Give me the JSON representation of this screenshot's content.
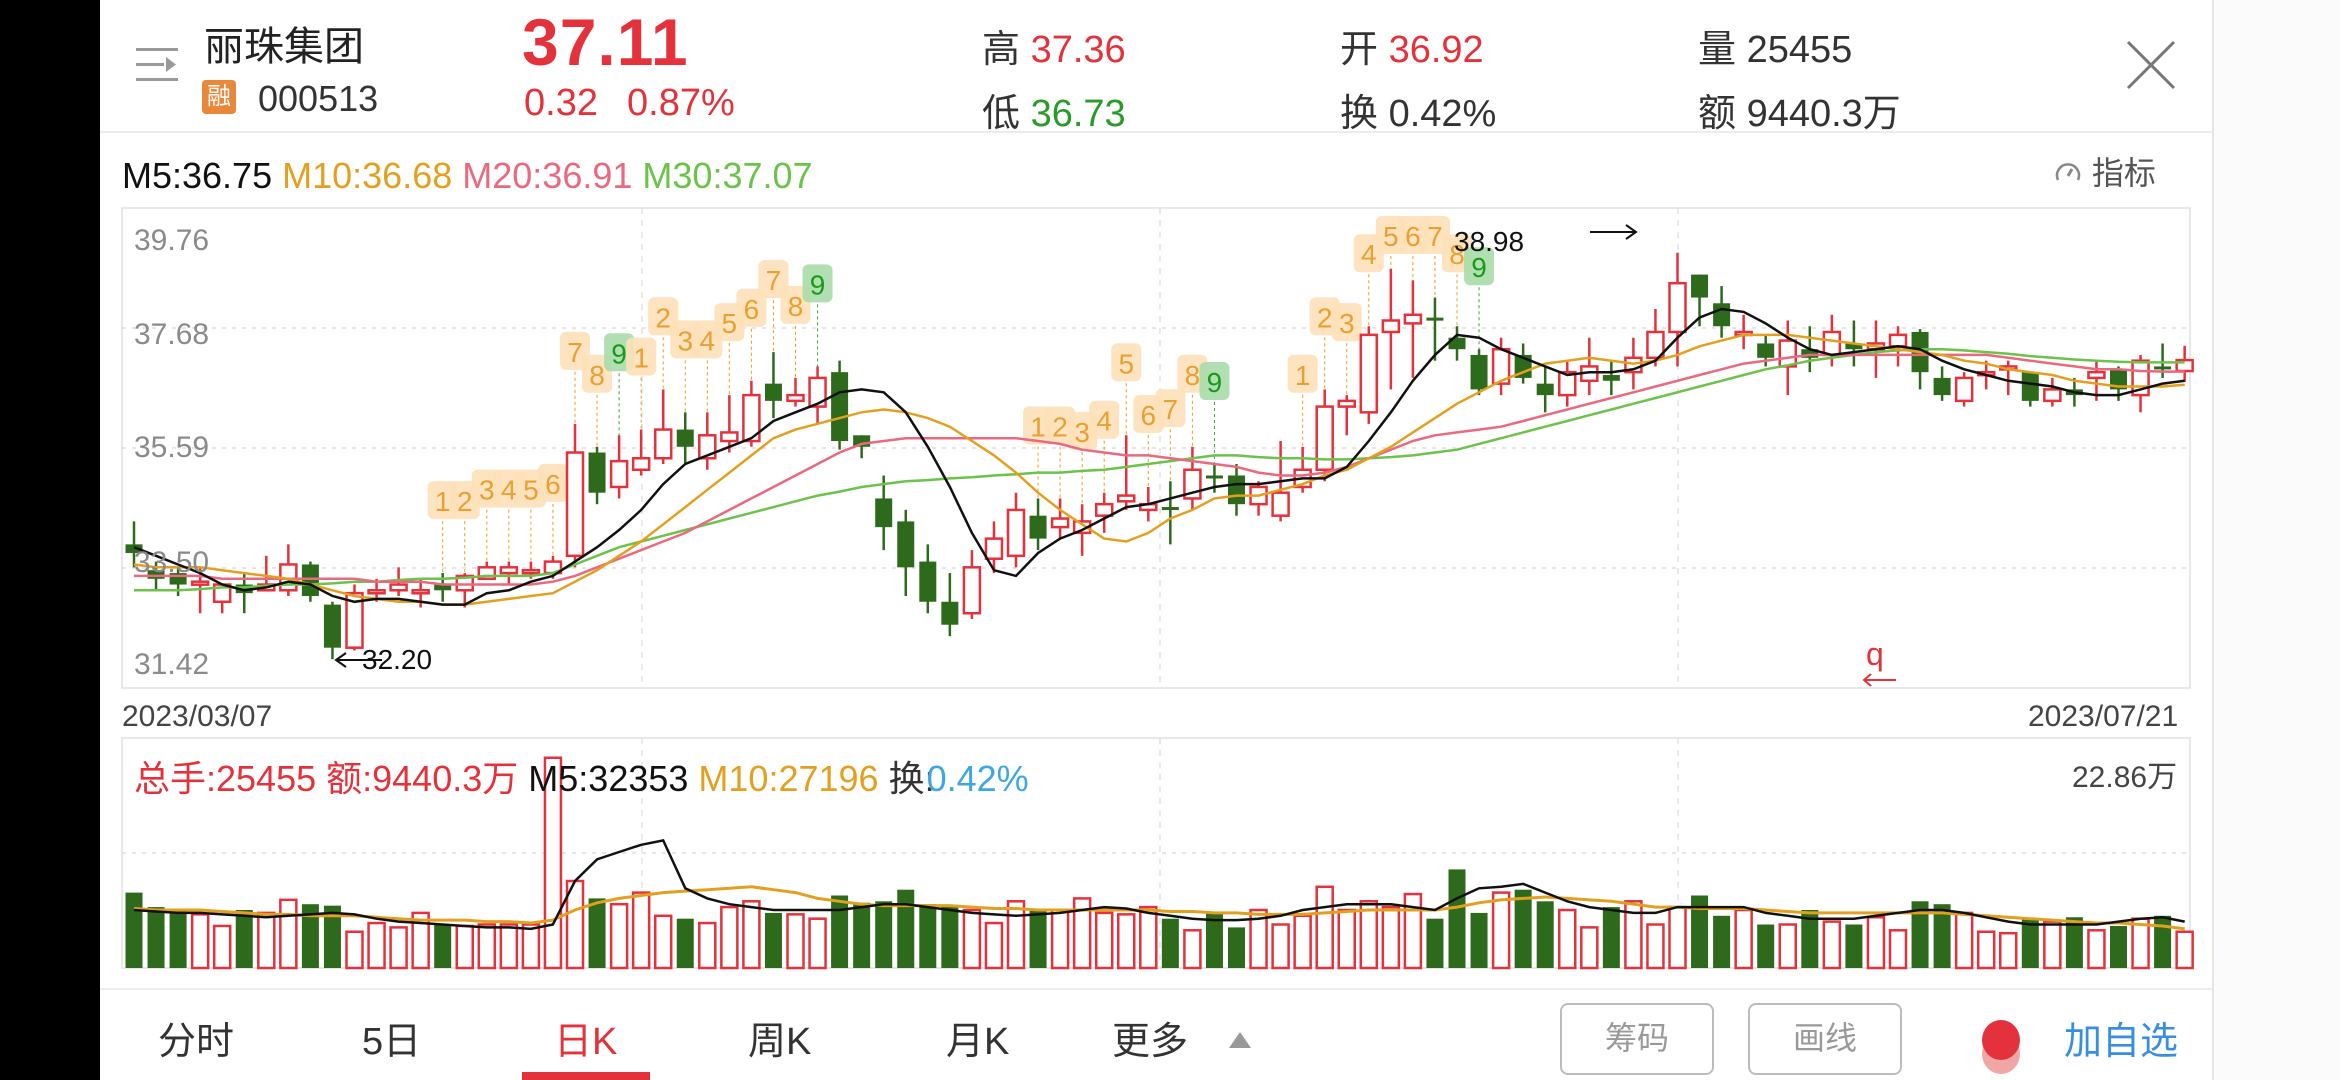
{
  "header": {
    "stock_name": "丽珠集团",
    "badge": "融",
    "stock_code": "000513",
    "price": "37.11",
    "change": "0.32",
    "change_pct": "0.87%",
    "high_label": "高",
    "high_value": "37.36",
    "low_label": "低",
    "low_value": "36.73",
    "open_label": "开",
    "open_value": "36.92",
    "turnover_label": "换",
    "turnover_value": "0.42%",
    "volume_label": "量",
    "volume_value": "25455",
    "amount_label": "额",
    "amount_value": "9440.3万"
  },
  "indicator_button": "指标",
  "ma_legend": {
    "m5": "M5:36.75",
    "m10": "M10:36.68",
    "m20": "M20:36.91",
    "m30": "M30:37.07"
  },
  "colors": {
    "up": "#e3323b",
    "down": "#2d6a1c",
    "m5": "#111111",
    "m10": "#e3a020",
    "m20": "#e86a80",
    "m30": "#6cc24a",
    "turnover_blue": "#3fa7e0",
    "add_watch_blue": "#3a8ee0"
  },
  "price_axis": [
    "39.76",
    "37.68",
    "35.59",
    "33.50",
    "31.42"
  ],
  "annotations": {
    "high_mark": "38.98",
    "low_mark": "32.20",
    "signal_mark": "q"
  },
  "date_range": {
    "start": "2023/03/07",
    "end": "2023/07/21"
  },
  "volume_panel": {
    "total_hands": "总手:25455",
    "amount": "额:9440.3万",
    "m5": "M5:32353",
    "m10": "M10:27196",
    "turnover_label": "换:",
    "turnover_value": "0.42%",
    "max_label": "22.86万"
  },
  "tabs": [
    {
      "label": "分时",
      "active": false
    },
    {
      "label": "5日",
      "active": false
    },
    {
      "label": "日K",
      "active": true
    },
    {
      "label": "周K",
      "active": false
    },
    {
      "label": "月K",
      "active": false
    },
    {
      "label": "更多",
      "active": false
    }
  ],
  "buttons": {
    "chips": "筹码",
    "draw_line": "画线",
    "add_watchlist": "加自选"
  },
  "chart_data": {
    "type": "candlestick",
    "title": "丽珠集团 000513 日K",
    "x_range": [
      "2023/03/07",
      "2023/07/21"
    ],
    "ylim": [
      31.42,
      39.76
    ],
    "y_ticks": [
      39.76,
      37.68,
      35.59,
      33.5,
      31.42
    ],
    "ma_latest": {
      "M5": 36.75,
      "M10": 36.68,
      "M20": 36.91,
      "M30": 37.07
    },
    "candles": [
      [
        33.9,
        33.75,
        34.3,
        33.5
      ],
      [
        33.45,
        33.3,
        33.6,
        33.1
      ],
      [
        33.4,
        33.2,
        33.5,
        33.0
      ],
      [
        33.2,
        33.25,
        33.5,
        32.7
      ],
      [
        32.9,
        33.2,
        33.2,
        32.7
      ],
      [
        33.2,
        33.05,
        33.4,
        32.7
      ],
      [
        33.1,
        33.2,
        33.7,
        33.1
      ],
      [
        33.1,
        33.55,
        33.9,
        33.0
      ],
      [
        33.55,
        33.0,
        33.6,
        32.9
      ],
      [
        32.85,
        32.1,
        32.9,
        31.9
      ],
      [
        32.1,
        33.05,
        33.2,
        32.05
      ],
      [
        33.05,
        33.1,
        33.3,
        32.9
      ],
      [
        33.1,
        33.2,
        33.5,
        33.0
      ],
      [
        33.05,
        33.1,
        33.3,
        32.8
      ],
      [
        33.2,
        33.1,
        33.4,
        32.9
      ],
      [
        33.1,
        33.35,
        33.4,
        32.8
      ],
      [
        33.3,
        33.5,
        33.6,
        33.3
      ],
      [
        33.4,
        33.5,
        33.6,
        33.2
      ],
      [
        33.4,
        33.45,
        33.6,
        33.3
      ],
      [
        33.4,
        33.6,
        33.7,
        33.3
      ],
      [
        33.7,
        35.5,
        36.0,
        33.5
      ],
      [
        35.5,
        34.8,
        35.6,
        34.6
      ],
      [
        34.9,
        35.35,
        35.8,
        34.7
      ],
      [
        35.2,
        35.4,
        35.9,
        35.1
      ],
      [
        35.4,
        35.9,
        36.6,
        35.3
      ],
      [
        35.9,
        35.6,
        36.2,
        35.3
      ],
      [
        35.4,
        35.8,
        36.2,
        35.2
      ],
      [
        35.7,
        35.85,
        36.5,
        35.5
      ],
      [
        35.7,
        36.5,
        36.75,
        35.6
      ],
      [
        36.7,
        36.4,
        37.25,
        36.1
      ],
      [
        36.4,
        36.5,
        36.8,
        36.3
      ],
      [
        36.3,
        36.8,
        37.0,
        36.0
      ],
      [
        36.9,
        35.7,
        37.1,
        35.55
      ],
      [
        35.8,
        35.6,
        35.8,
        35.4
      ],
      [
        34.7,
        34.2,
        35.1,
        33.8
      ],
      [
        34.3,
        33.5,
        34.5,
        33.0
      ],
      [
        33.6,
        32.9,
        33.9,
        32.7
      ],
      [
        32.9,
        32.5,
        33.4,
        32.3
      ],
      [
        32.7,
        33.5,
        33.8,
        32.6
      ],
      [
        33.65,
        34.0,
        34.3,
        33.4
      ],
      [
        33.7,
        34.5,
        34.8,
        33.5
      ],
      [
        34.4,
        34.0,
        34.7,
        33.8
      ],
      [
        34.2,
        34.35,
        34.7,
        34.0
      ],
      [
        34.1,
        34.3,
        34.6,
        33.7
      ],
      [
        34.4,
        34.6,
        34.8,
        34.1
      ],
      [
        34.65,
        34.75,
        35.8,
        34.5
      ],
      [
        34.5,
        34.6,
        34.9,
        34.3
      ],
      [
        34.55,
        34.5,
        35.0,
        33.9
      ],
      [
        34.7,
        35.2,
        35.6,
        34.5
      ],
      [
        35.1,
        35.05,
        35.3,
        34.8
      ],
      [
        35.1,
        34.6,
        35.3,
        34.4
      ],
      [
        34.6,
        34.9,
        35.0,
        34.4
      ],
      [
        34.4,
        34.8,
        35.7,
        34.3
      ],
      [
        34.9,
        35.2,
        35.6,
        34.8
      ],
      [
        35.2,
        36.3,
        36.6,
        35.0
      ],
      [
        36.3,
        36.4,
        36.5,
        35.8
      ],
      [
        36.2,
        37.55,
        37.7,
        36.0
      ],
      [
        37.6,
        37.8,
        38.7,
        36.6
      ],
      [
        37.75,
        37.9,
        38.5,
        36.8
      ],
      [
        37.85,
        37.8,
        38.2,
        37.1
      ],
      [
        37.5,
        37.3,
        37.7,
        37.1
      ],
      [
        37.2,
        36.6,
        37.3,
        36.5
      ],
      [
        36.7,
        37.3,
        37.5,
        36.5
      ],
      [
        37.2,
        36.8,
        37.4,
        36.7
      ],
      [
        36.7,
        36.5,
        37.0,
        36.2
      ],
      [
        36.5,
        36.9,
        37.1,
        36.3
      ],
      [
        36.75,
        37.0,
        37.5,
        36.5
      ],
      [
        36.85,
        36.75,
        37.1,
        36.5
      ],
      [
        36.9,
        37.15,
        37.5,
        36.6
      ],
      [
        37.15,
        37.6,
        38.0,
        37.0
      ],
      [
        37.6,
        38.45,
        38.98,
        37.0
      ],
      [
        38.6,
        38.2,
        38.6,
        37.7
      ],
      [
        38.1,
        37.7,
        38.4,
        37.5
      ],
      [
        37.6,
        37.6,
        37.9,
        37.3
      ],
      [
        37.4,
        37.15,
        37.55,
        37.0
      ],
      [
        37.0,
        37.45,
        37.8,
        36.5
      ],
      [
        37.3,
        37.15,
        37.7,
        36.9
      ],
      [
        37.2,
        37.6,
        37.9,
        37.0
      ],
      [
        37.4,
        37.3,
        37.8,
        37.0
      ],
      [
        37.3,
        37.4,
        37.8,
        36.8
      ],
      [
        37.35,
        37.55,
        37.7,
        37.0
      ],
      [
        37.6,
        36.9,
        37.65,
        36.6
      ],
      [
        36.8,
        36.5,
        37.0,
        36.4
      ],
      [
        36.4,
        36.8,
        36.9,
        36.3
      ],
      [
        36.9,
        36.9,
        37.1,
        36.6
      ],
      [
        36.95,
        37.0,
        37.1,
        36.5
      ],
      [
        36.9,
        36.4,
        36.9,
        36.3
      ],
      [
        36.4,
        36.6,
        36.8,
        36.3
      ],
      [
        36.6,
        36.5,
        36.8,
        36.3
      ],
      [
        36.8,
        36.9,
        37.1,
        36.4
      ],
      [
        36.95,
        36.6,
        37.0,
        36.4
      ],
      [
        36.5,
        37.1,
        37.2,
        36.2
      ],
      [
        37.0,
        36.95,
        37.4,
        36.8
      ],
      [
        36.92,
        37.11,
        37.36,
        36.73
      ]
    ],
    "ma_lines": {
      "M5": [
        33.85,
        33.7,
        33.55,
        33.4,
        33.2,
        33.1,
        33.15,
        33.25,
        33.2,
        33.0,
        32.9,
        32.95,
        32.95,
        32.9,
        32.85,
        32.85,
        33.05,
        33.1,
        33.25,
        33.35,
        33.6,
        33.85,
        34.15,
        34.5,
        34.95,
        35.3,
        35.45,
        35.6,
        35.75,
        36.05,
        36.2,
        36.35,
        36.55,
        36.6,
        36.55,
        36.2,
        35.6,
        34.9,
        34.1,
        33.45,
        33.35,
        33.75,
        34.0,
        34.15,
        34.35,
        34.55,
        34.6,
        34.7,
        34.8,
        34.9,
        34.95,
        34.95,
        35.0,
        35.05,
        35.05,
        35.25,
        35.7,
        36.2,
        36.75,
        37.2,
        37.55,
        37.5,
        37.3,
        37.15,
        37.0,
        36.85,
        36.9,
        36.9,
        36.95,
        37.1,
        37.5,
        37.85,
        38.0,
        37.95,
        37.75,
        37.5,
        37.3,
        37.2,
        37.25,
        37.3,
        37.35,
        37.3,
        37.1,
        36.95,
        36.85,
        36.75,
        36.7,
        36.65,
        36.55,
        36.5,
        36.5,
        36.6,
        36.7,
        36.75
      ],
      "M10": [
        33.55,
        33.5,
        33.5,
        33.5,
        33.45,
        33.4,
        33.35,
        33.3,
        33.2,
        33.1,
        33.0,
        32.95,
        32.9,
        32.9,
        32.85,
        32.85,
        32.9,
        32.95,
        33.0,
        33.05,
        33.25,
        33.45,
        33.7,
        33.95,
        34.25,
        34.55,
        34.85,
        35.15,
        35.45,
        35.75,
        35.9,
        36.0,
        36.1,
        36.2,
        36.25,
        36.2,
        36.1,
        35.95,
        35.7,
        35.45,
        35.15,
        34.8,
        34.5,
        34.25,
        34.0,
        33.95,
        34.1,
        34.35,
        34.5,
        34.7,
        34.75,
        34.75,
        34.85,
        34.95,
        35.1,
        35.2,
        35.4,
        35.6,
        35.85,
        36.1,
        36.35,
        36.55,
        36.75,
        36.9,
        37.05,
        37.1,
        37.15,
        37.1,
        37.05,
        37.1,
        37.2,
        37.35,
        37.45,
        37.55,
        37.55,
        37.55,
        37.5,
        37.45,
        37.4,
        37.35,
        37.3,
        37.25,
        37.2,
        37.1,
        37.05,
        36.95,
        36.9,
        36.85,
        36.75,
        36.7,
        36.65,
        36.65,
        36.65,
        36.68
      ],
      "M20": [
        33.35,
        33.35,
        33.35,
        33.35,
        33.3,
        33.3,
        33.3,
        33.3,
        33.3,
        33.3,
        33.3,
        33.25,
        33.25,
        33.25,
        33.2,
        33.2,
        33.2,
        33.2,
        33.2,
        33.25,
        33.35,
        33.5,
        33.65,
        33.8,
        33.95,
        34.1,
        34.3,
        34.5,
        34.7,
        34.9,
        35.1,
        35.3,
        35.5,
        35.65,
        35.7,
        35.75,
        35.75,
        35.75,
        35.75,
        35.75,
        35.75,
        35.7,
        35.65,
        35.55,
        35.5,
        35.45,
        35.45,
        35.4,
        35.35,
        35.3,
        35.25,
        35.15,
        35.1,
        35.1,
        35.15,
        35.25,
        35.4,
        35.55,
        35.7,
        35.8,
        35.85,
        35.9,
        35.95,
        36.05,
        36.15,
        36.25,
        36.35,
        36.45,
        36.55,
        36.65,
        36.75,
        36.85,
        36.95,
        37.05,
        37.1,
        37.15,
        37.2,
        37.2,
        37.2,
        37.2,
        37.2,
        37.2,
        37.2,
        37.2,
        37.2,
        37.15,
        37.1,
        37.05,
        37.0,
        36.95,
        36.95,
        36.92,
        36.91,
        36.91
      ],
      "M30": [
        33.1,
        33.1,
        33.1,
        33.12,
        33.15,
        33.15,
        33.18,
        33.2,
        33.2,
        33.22,
        33.25,
        33.25,
        33.28,
        33.3,
        33.3,
        33.32,
        33.35,
        33.35,
        33.35,
        33.4,
        33.55,
        33.7,
        33.85,
        33.95,
        34.05,
        34.15,
        34.25,
        34.35,
        34.45,
        34.55,
        34.65,
        34.75,
        34.82,
        34.9,
        34.95,
        35.0,
        35.02,
        35.05,
        35.07,
        35.1,
        35.12,
        35.15,
        35.15,
        35.18,
        35.2,
        35.25,
        35.3,
        35.35,
        35.4,
        35.45,
        35.45,
        35.42,
        35.4,
        35.4,
        35.38,
        35.38,
        35.4,
        35.42,
        35.45,
        35.5,
        35.55,
        35.65,
        35.75,
        35.85,
        35.95,
        36.05,
        36.15,
        36.25,
        36.35,
        36.45,
        36.55,
        36.65,
        36.75,
        36.85,
        36.95,
        37.02,
        37.1,
        37.15,
        37.2,
        37.25,
        37.28,
        37.3,
        37.3,
        37.28,
        37.25,
        37.22,
        37.18,
        37.15,
        37.12,
        37.1,
        37.08,
        37.07,
        37.07,
        37.07
      ]
    },
    "td_labels": [
      {
        "i": 14,
        "n": "1"
      },
      {
        "i": 15,
        "n": "2"
      },
      {
        "i": 16,
        "n": "3"
      },
      {
        "i": 17,
        "n": "4"
      },
      {
        "i": 18,
        "n": "5"
      },
      {
        "i": 19,
        "n": "6"
      },
      {
        "i": 20,
        "n": "7"
      },
      {
        "i": 21,
        "n": "8"
      },
      {
        "i": 22,
        "n": "9"
      },
      {
        "i": 23,
        "n": "1"
      },
      {
        "i": 24,
        "n": "2"
      },
      {
        "i": 25,
        "n": "3"
      },
      {
        "i": 26,
        "n": "4"
      },
      {
        "i": 27,
        "n": "5"
      },
      {
        "i": 28,
        "n": "6"
      },
      {
        "i": 29,
        "n": "7"
      },
      {
        "i": 30,
        "n": "8"
      },
      {
        "i": 31,
        "n": "9"
      },
      {
        "i": 41,
        "n": "1"
      },
      {
        "i": 42,
        "n": "2"
      },
      {
        "i": 43,
        "n": "3"
      },
      {
        "i": 44,
        "n": "4"
      },
      {
        "i": 45,
        "n": "5"
      },
      {
        "i": 46,
        "n": "6"
      },
      {
        "i": 47,
        "n": "7"
      },
      {
        "i": 48,
        "n": "8"
      },
      {
        "i": 49,
        "n": "9"
      },
      {
        "i": 53,
        "n": "1"
      },
      {
        "i": 54,
        "n": "2"
      },
      {
        "i": 55,
        "n": "3"
      },
      {
        "i": 56,
        "n": "4"
      },
      {
        "i": 57,
        "n": "5"
      },
      {
        "i": 58,
        "n": "6"
      },
      {
        "i": 59,
        "n": "7"
      },
      {
        "i": 60,
        "n": "8"
      },
      {
        "i": 61,
        "n": "9"
      }
    ],
    "volume": {
      "max": 228600,
      "values": [
        52,
        42,
        40,
        37,
        29,
        40,
        38,
        47,
        44,
        43,
        25,
        31,
        28,
        38,
        30,
        29,
        30,
        30,
        30,
        145,
        60,
        48,
        44,
        52,
        36,
        34,
        31,
        42,
        46,
        38,
        37,
        34,
        50,
        45,
        46,
        54,
        44,
        43,
        40,
        31,
        46,
        41,
        40,
        48,
        38,
        37,
        42,
        34,
        26,
        38,
        28,
        40,
        30,
        36,
        56,
        40,
        46,
        42,
        51,
        34,
        68,
        38,
        52,
        54,
        46,
        40,
        28,
        42,
        46,
        30,
        42,
        50,
        36,
        40,
        30,
        30,
        40,
        32,
        30,
        35,
        26,
        46,
        44,
        38,
        25,
        24,
        34,
        32,
        35,
        26,
        29,
        34,
        36,
        25
      ],
      "m5": [
        40,
        39,
        38,
        38,
        37,
        36,
        35,
        36,
        37,
        38,
        37,
        34,
        32,
        31,
        30,
        29,
        28,
        28,
        27,
        30,
        60,
        75,
        80,
        85,
        88,
        55,
        48,
        44,
        42,
        40,
        40,
        40,
        40,
        42,
        44,
        44,
        42,
        40,
        38,
        37,
        36,
        37,
        38,
        40,
        42,
        41,
        38,
        36,
        34,
        33,
        33,
        34,
        36,
        40,
        42,
        44,
        44,
        44,
        42,
        40,
        48,
        55,
        56,
        58,
        52,
        46,
        42,
        40,
        38,
        38,
        42,
        42,
        42,
        42,
        38,
        36,
        34,
        34,
        34,
        36,
        38,
        40,
        40,
        38,
        35,
        32,
        30,
        30,
        30,
        30,
        32,
        34,
        35,
        32
      ],
      "m10": [
        41,
        40,
        40,
        40,
        39,
        38,
        37,
        37,
        36,
        36,
        36,
        35,
        34,
        33,
        33,
        33,
        32,
        32,
        31,
        33,
        40,
        45,
        48,
        50,
        52,
        53,
        54,
        55,
        56,
        54,
        52,
        48,
        46,
        44,
        43,
        43,
        43,
        43,
        42,
        41,
        41,
        40,
        40,
        40,
        40,
        40,
        40,
        39,
        39,
        38,
        38,
        37,
        37,
        37,
        38,
        39,
        40,
        40,
        40,
        40,
        42,
        45,
        47,
        48,
        49,
        48,
        47,
        46,
        44,
        42,
        42,
        41,
        41,
        41,
        40,
        39,
        38,
        38,
        38,
        38,
        38,
        38,
        38,
        37,
        36,
        35,
        34,
        33,
        32,
        31,
        31,
        30,
        29,
        27
      ]
    }
  }
}
